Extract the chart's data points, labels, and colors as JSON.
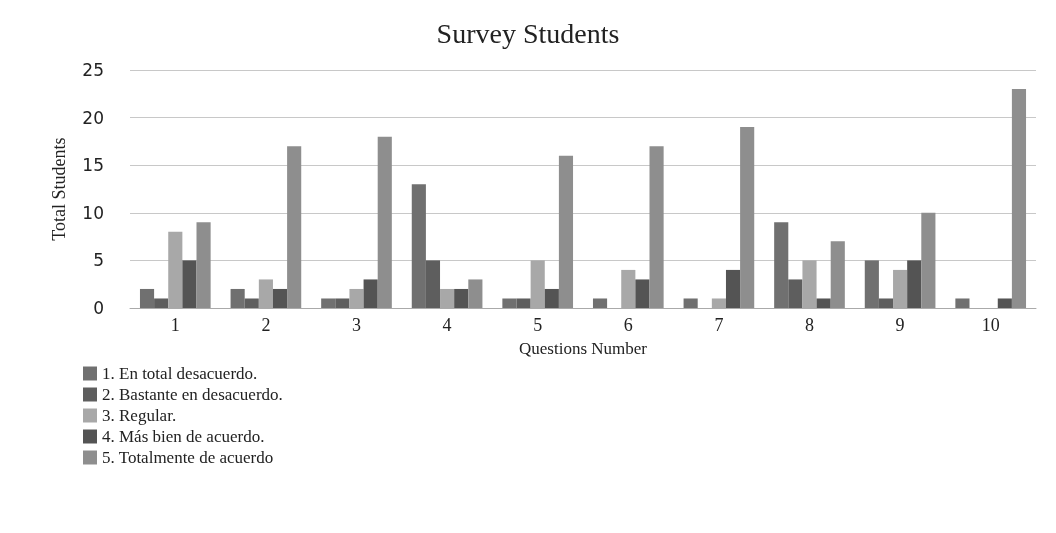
{
  "chart_data": {
    "type": "bar",
    "title": "Survey Students",
    "xlabel": "Questions Number",
    "ylabel": "Total Students",
    "categories": [
      "1",
      "2",
      "3",
      "4",
      "5",
      "6",
      "7",
      "8",
      "9",
      "10"
    ],
    "series": [
      {
        "name": "1. En total desacuerdo.",
        "color": "#707070",
        "values": [
          2,
          2,
          1,
          13,
          1,
          1,
          1,
          9,
          5,
          1
        ]
      },
      {
        "name": "2. Bastante en desacuerdo.",
        "color": "#5e5e5e",
        "values": [
          1,
          1,
          1,
          5,
          1,
          0,
          0,
          3,
          1,
          0
        ]
      },
      {
        "name": "3. Regular.",
        "color": "#a8a8a8",
        "values": [
          8,
          3,
          2,
          2,
          5,
          4,
          1,
          5,
          4,
          0
        ]
      },
      {
        "name": "4. Más bien de acuerdo.",
        "color": "#545454",
        "values": [
          5,
          2,
          3,
          2,
          2,
          3,
          4,
          1,
          5,
          1
        ]
      },
      {
        "name": "5. Totalmente de acuerdo",
        "color": "#8e8e8e",
        "values": [
          9,
          17,
          18,
          3,
          16,
          17,
          19,
          7,
          10,
          23
        ]
      }
    ],
    "ylim": [
      0,
      25
    ],
    "yticks": [
      0,
      5,
      10,
      15,
      20,
      25
    ],
    "grid": "y",
    "legend": "bottom left"
  }
}
